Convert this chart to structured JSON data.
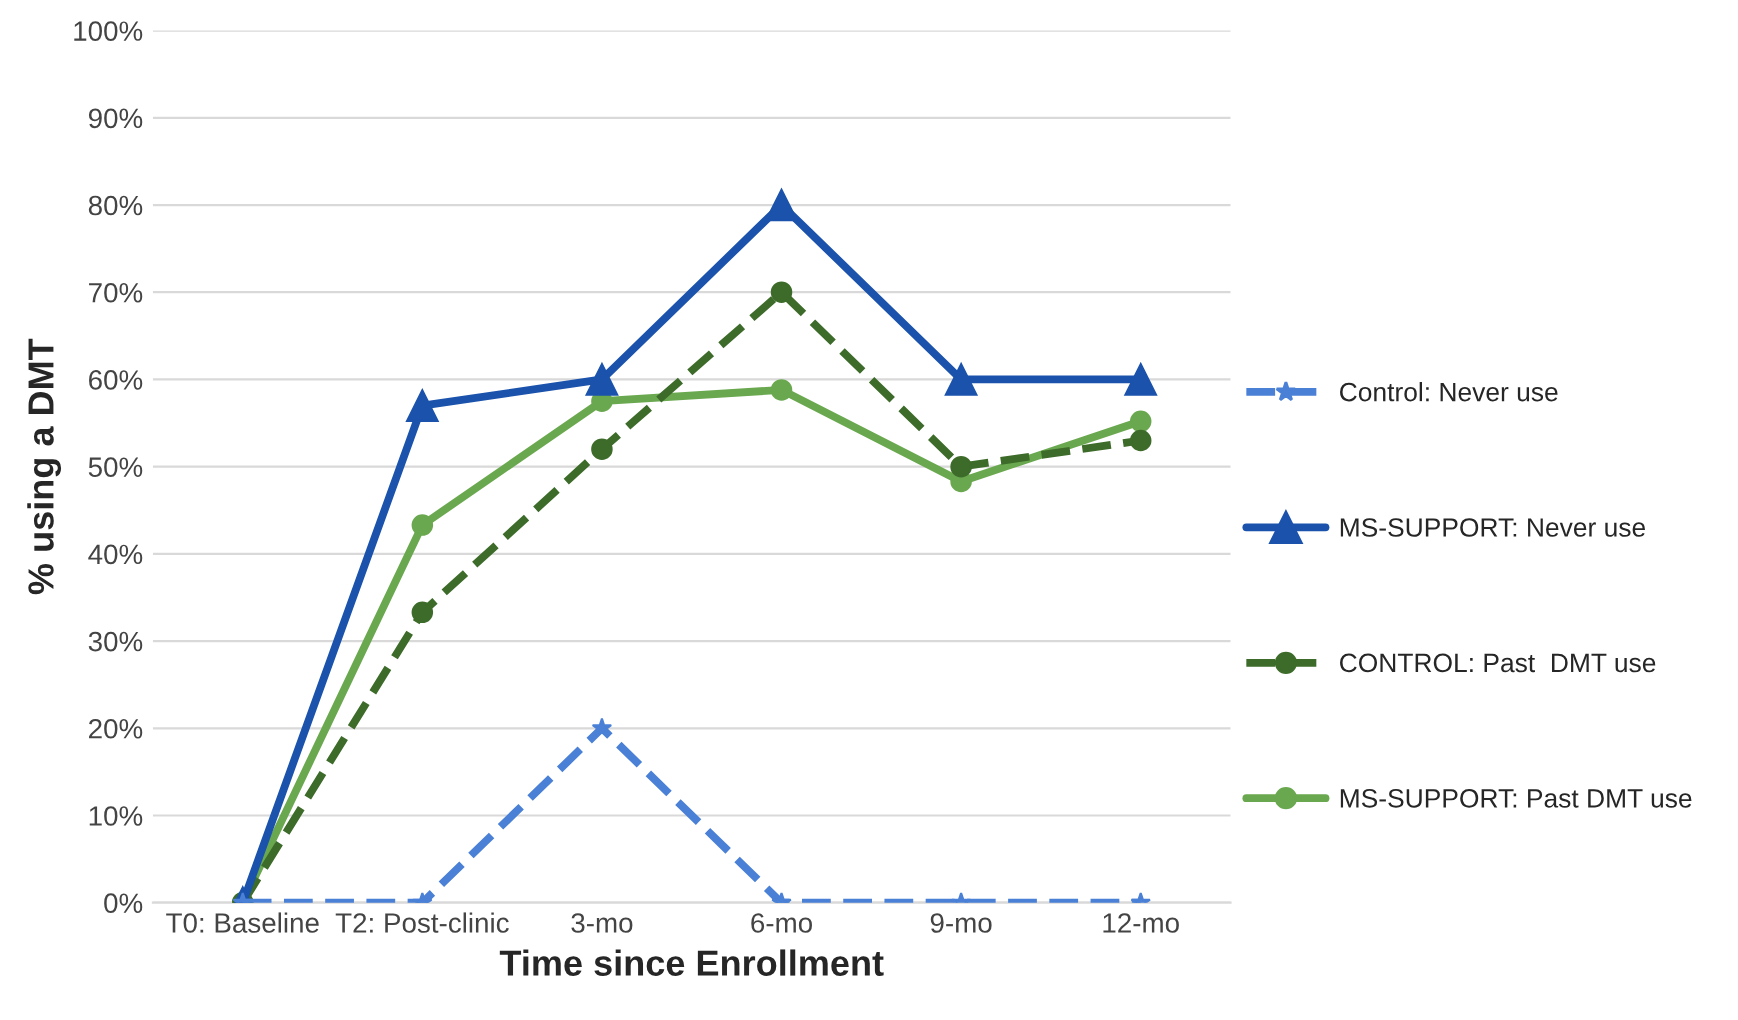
{
  "chart_data": {
    "type": "line",
    "xlabel": "Time since Enrollment",
    "ylabel": "% using a DMT",
    "categories": [
      "T0: Baseline",
      "T2: Post-clinic",
      "3-mo",
      "6-mo",
      "9-mo",
      "12-mo"
    ],
    "series": [
      {
        "name": "Control: Never use",
        "color": "#4a80d6",
        "line_style": "dashed",
        "marker": "star",
        "values": [
          0,
          0,
          20,
          0,
          0,
          0
        ]
      },
      {
        "name": "MS-SUPPORT: Never use",
        "color": "#1a52ac",
        "line_style": "solid",
        "marker": "triangle",
        "values": [
          0,
          57,
          60,
          80,
          60,
          60
        ]
      },
      {
        "name": "CONTROL: Past  DMT use",
        "color": "#3d6b2a",
        "line_style": "dashed",
        "marker": "circle",
        "values": [
          0,
          33.3,
          52,
          70,
          50,
          53
        ]
      },
      {
        "name": "MS-SUPPORT: Past DMT use",
        "color": "#6aa84f",
        "line_style": "solid",
        "marker": "circle",
        "values": [
          0,
          43.3,
          57.5,
          58.8,
          48.3,
          55.2
        ]
      }
    ],
    "ylim": [
      0,
      100
    ],
    "yticks": [
      {
        "value": 0,
        "label": "0%"
      },
      {
        "value": 10,
        "label": "10%"
      },
      {
        "value": 20,
        "label": "20%"
      },
      {
        "value": 30,
        "label": "30%"
      },
      {
        "value": 40,
        "label": "40%"
      },
      {
        "value": 50,
        "label": "50%"
      },
      {
        "value": 60,
        "label": "60%"
      },
      {
        "value": 70,
        "label": "70%"
      },
      {
        "value": 80,
        "label": "80%"
      },
      {
        "value": 90,
        "label": "90%"
      },
      {
        "value": 100,
        "label": "100%"
      }
    ],
    "grid": "y",
    "legend": "right"
  }
}
